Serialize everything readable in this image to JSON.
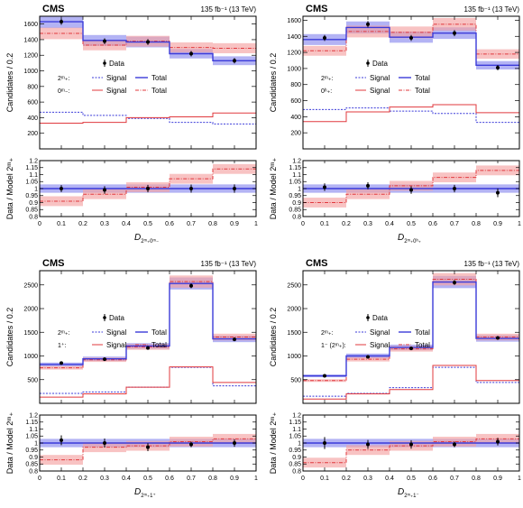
{
  "chart_data": [
    {
      "type": "bar",
      "cms": "CMS",
      "lumi": "135 fb⁻¹ (13 TeV)",
      "ylabel": "Candidates / 0.2",
      "ratio_ylabel": "Data / Model 2ᵐ₊",
      "xlabel": "D",
      "xlabel_sub": "2ᵐ₊0ᵐ₋",
      "xlim": [
        0,
        1
      ],
      "ylim": [
        0,
        1700
      ],
      "yticks": [
        200,
        400,
        600,
        800,
        1000,
        1200,
        1400,
        1600
      ],
      "ratio_ylim": [
        0.8,
        1.2
      ],
      "ratio_yticks": [
        0.8,
        0.85,
        0.9,
        0.95,
        1,
        1.05,
        1.1,
        1.15,
        1.2
      ],
      "ratio_yticklabels": [
        "0.8",
        "0.85",
        "0.9",
        "0.95",
        "1",
        "1.05",
        "1.1",
        "1.15",
        "1.2"
      ],
      "xticks": [
        0,
        0.1,
        0.2,
        0.3,
        0.4,
        0.5,
        0.6,
        0.7,
        0.8,
        0.9,
        1
      ],
      "xticklabels": [
        "0",
        "0.1",
        "0.2",
        "0.3",
        "0.4",
        "0.5",
        "0.6",
        "0.7",
        "0.8",
        "0.9",
        "1"
      ],
      "bin_edges": [
        0,
        0.2,
        0.4,
        0.6,
        0.8,
        1
      ],
      "data": [
        1630,
        1380,
        1370,
        1220,
        1130
      ],
      "data_err": [
        40,
        37,
        37,
        35,
        34
      ],
      "model_a_total": [
        1630,
        1390,
        1370,
        1220,
        1130
      ],
      "model_a_signal": [
        470,
        430,
        390,
        340,
        320
      ],
      "model_b_total": [
        1480,
        1330,
        1380,
        1300,
        1290
      ],
      "model_b_signal": [
        330,
        340,
        400,
        410,
        460
      ],
      "ratio_a": [
        1.0,
        1.0,
        1.0,
        1.0,
        1.0
      ],
      "ratio_b": [
        0.91,
        0.96,
        1.01,
        1.07,
        1.14
      ],
      "ratio_data": [
        1.0,
        0.99,
        1.0,
        1.0,
        1.0
      ],
      "ratio_err": [
        0.025,
        0.027,
        0.027,
        0.029,
        0.03
      ],
      "legend": {
        "data": "Data",
        "row_a": "2ᵐ₊:",
        "row_b": "0ᵐ₋:",
        "signal": "Signal",
        "total": "Total"
      }
    },
    {
      "type": "bar",
      "cms": "CMS",
      "lumi": "135 fb⁻¹ (13 TeV)",
      "ylabel": "Candidates / 0.2",
      "ratio_ylabel": "Data / Model 2ᵐ₊",
      "xlabel": "D",
      "xlabel_sub": "2ᵐ₊0ʰ₊",
      "xlim": [
        0,
        1
      ],
      "ylim": [
        0,
        1650
      ],
      "yticks": [
        200,
        400,
        600,
        800,
        1000,
        1200,
        1400,
        1600
      ],
      "ratio_ylim": [
        0.8,
        1.2
      ],
      "ratio_yticks": [
        0.8,
        0.85,
        0.9,
        0.95,
        1,
        1.05,
        1.1,
        1.15,
        1.2
      ],
      "ratio_yticklabels": [
        "0.8",
        "0.85",
        "0.9",
        "0.95",
        "1",
        "1.05",
        "1.1",
        "1.15",
        "1.2"
      ],
      "xticks": [
        0,
        0.1,
        0.2,
        0.3,
        0.4,
        0.5,
        0.6,
        0.7,
        0.8,
        0.9,
        1
      ],
      "xticklabels": [
        "0",
        "0.1",
        "0.2",
        "0.3",
        "0.4",
        "0.5",
        "0.6",
        "0.7",
        "0.8",
        "0.9",
        "1"
      ],
      "bin_edges": [
        0,
        0.2,
        0.4,
        0.6,
        0.8,
        1
      ],
      "data": [
        1380,
        1550,
        1380,
        1440,
        1010
      ],
      "data_err": [
        37,
        39,
        37,
        38,
        32
      ],
      "model_a_total": [
        1360,
        1510,
        1390,
        1440,
        1040
      ],
      "model_a_signal": [
        490,
        510,
        470,
        440,
        330
      ],
      "model_b_total": [
        1220,
        1460,
        1450,
        1550,
        1180
      ],
      "model_b_signal": [
        340,
        460,
        520,
        550,
        450
      ],
      "ratio_a": [
        1.0,
        1.0,
        1.0,
        1.0,
        1.0
      ],
      "ratio_b": [
        0.9,
        0.96,
        1.02,
        1.08,
        1.13
      ],
      "ratio_data": [
        1.01,
        1.02,
        0.99,
        1.0,
        0.97
      ],
      "ratio_err": [
        0.027,
        0.025,
        0.027,
        0.027,
        0.031
      ],
      "legend": {
        "data": "Data",
        "row_a": "2ᵐ₊:",
        "row_b": "0ʰ₊:",
        "signal": "Signal",
        "total": "Total"
      }
    },
    {
      "type": "bar",
      "cms": "CMS",
      "lumi": "135 fb⁻¹ (13 TeV)",
      "ylabel": "Candidates / 0.2",
      "ratio_ylabel": "Data / Model 2ᵐ₊",
      "xlabel": "D",
      "xlabel_sub": "2ᵐ₊1⁺",
      "xlim": [
        0,
        1
      ],
      "ylim": [
        0,
        2800
      ],
      "yticks": [
        500,
        1000,
        1500,
        2000,
        2500
      ],
      "ratio_ylim": [
        0.8,
        1.2
      ],
      "ratio_yticks": [
        0.8,
        0.85,
        0.9,
        0.95,
        1,
        1.05,
        1.1,
        1.15,
        1.2
      ],
      "ratio_yticklabels": [
        "0.8",
        "0.85",
        "0.9",
        "0.95",
        "1",
        "1.05",
        "1.1",
        "1.15",
        "1.2"
      ],
      "xticks": [
        0,
        0.1,
        0.2,
        0.3,
        0.4,
        0.5,
        0.6,
        0.7,
        0.8,
        0.9,
        1
      ],
      "xticklabels": [
        "0",
        "0.1",
        "0.2",
        "0.3",
        "0.4",
        "0.5",
        "0.6",
        "0.7",
        "0.8",
        "0.9",
        "1"
      ],
      "bin_edges": [
        0,
        0.2,
        0.4,
        0.6,
        0.8,
        1
      ],
      "data": [
        850,
        930,
        1170,
        2480,
        1350
      ],
      "data_err": [
        29,
        30,
        34,
        50,
        37
      ],
      "model_a_total": [
        820,
        940,
        1210,
        2530,
        1360
      ],
      "model_a_signal": [
        210,
        240,
        340,
        760,
        370
      ],
      "model_b_total": [
        750,
        920,
        1190,
        2570,
        1400
      ],
      "model_b_signal": [
        130,
        200,
        340,
        770,
        440
      ],
      "ratio_a": [
        1.0,
        1.0,
        1.0,
        1.0,
        1.0
      ],
      "ratio_b": [
        0.88,
        0.97,
        0.98,
        1.01,
        1.03
      ],
      "ratio_data": [
        1.02,
        1.0,
        0.97,
        0.99,
        1.0
      ],
      "ratio_err": [
        0.035,
        0.032,
        0.028,
        0.02,
        0.027
      ],
      "legend": {
        "data": "Data",
        "row_a": "2ᵐ₊:",
        "row_b": "1⁺:",
        "signal": "Signal",
        "total": "Total"
      }
    },
    {
      "type": "bar",
      "cms": "CMS",
      "lumi": "135 fb⁻¹ (13 TeV)",
      "ylabel": "Candidates / 0.2",
      "ratio_ylabel": "Data / Model 2ᵐ₊",
      "xlabel": "D",
      "xlabel_sub": "2ᵐ₊1⁻",
      "xlim": [
        0,
        1
      ],
      "ylim": [
        0,
        2800
      ],
      "yticks": [
        500,
        1000,
        1500,
        2000,
        2500
      ],
      "ratio_ylim": [
        0.8,
        1.2
      ],
      "ratio_yticks": [
        0.8,
        0.85,
        0.9,
        0.95,
        1,
        1.05,
        1.1,
        1.15,
        1.2
      ],
      "ratio_yticklabels": [
        "0.8",
        "0.85",
        "0.9",
        "0.95",
        "1",
        "1.05",
        "1.1",
        "1.15",
        "1.2"
      ],
      "xticks": [
        0,
        0.1,
        0.2,
        0.3,
        0.4,
        0.5,
        0.6,
        0.7,
        0.8,
        0.9,
        1
      ],
      "xticklabels": [
        "0",
        "0.1",
        "0.2",
        "0.3",
        "0.4",
        "0.5",
        "0.6",
        "0.7",
        "0.8",
        "0.9",
        "1"
      ],
      "bin_edges": [
        0,
        0.2,
        0.4,
        0.6,
        0.8,
        1
      ],
      "data": [
        580,
        980,
        1160,
        2550,
        1380
      ],
      "data_err": [
        24,
        31,
        34,
        50,
        37
      ],
      "model_a_total": [
        580,
        1000,
        1180,
        2560,
        1370
      ],
      "model_a_signal": [
        150,
        210,
        330,
        760,
        440
      ],
      "model_b_total": [
        480,
        930,
        1150,
        2620,
        1400
      ],
      "model_b_signal": [
        90,
        200,
        290,
        800,
        480
      ],
      "ratio_a": [
        1.0,
        1.0,
        1.0,
        1.0,
        1.0
      ],
      "ratio_b": [
        0.86,
        0.95,
        0.98,
        1.01,
        1.03
      ],
      "ratio_data": [
        1.0,
        0.99,
        0.99,
        0.99,
        1.01
      ],
      "ratio_err": [
        0.043,
        0.032,
        0.03,
        0.02,
        0.027
      ],
      "legend": {
        "data": "Data",
        "row_a": "2ᵐ₊:",
        "row_b": "1⁻ (2ᵐ₊):",
        "signal": "Signal",
        "total": "Total"
      }
    }
  ],
  "colors": {
    "model_a": "#3b3bd9",
    "model_a_band": "#9a9af0",
    "model_b": "#e0393e",
    "model_b_band": "#f4a3a3",
    "overlap_band": "#b07cc8"
  }
}
